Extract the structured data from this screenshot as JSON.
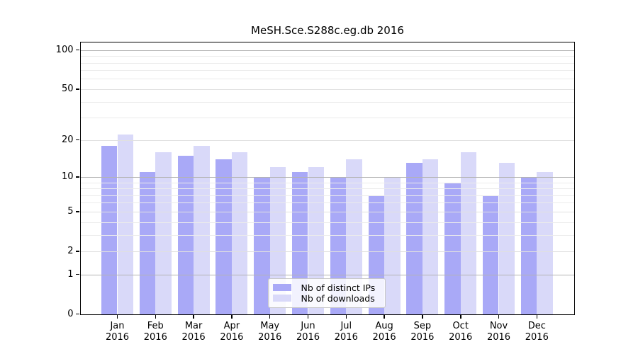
{
  "chart_data": {
    "type": "bar",
    "title": "MeSH.Sce.S288c.eg.db 2016",
    "categories": [
      "Jan",
      "Feb",
      "Mar",
      "Apr",
      "May",
      "Jun",
      "Jul",
      "Aug",
      "Sep",
      "Oct",
      "Nov",
      "Dec"
    ],
    "x_year_label": "2016",
    "series": [
      {
        "name": "Nb of distinct IPs",
        "color": "#a9a9f7",
        "values": [
          18,
          11,
          15,
          14,
          10,
          11,
          10,
          7,
          13,
          9,
          7,
          10
        ]
      },
      {
        "name": "Nb of downloads",
        "color": "#d9d9f9",
        "values": [
          22,
          16,
          18,
          16,
          12,
          12,
          14,
          10,
          14,
          16,
          13,
          11
        ]
      }
    ],
    "yscale": "log1p",
    "ylim": [
      0,
      115
    ],
    "yticks": [
      0,
      1,
      2,
      5,
      10,
      20,
      50,
      100
    ],
    "yticks_minor": [
      3,
      4,
      6,
      7,
      8,
      9,
      30,
      40,
      60,
      70,
      80,
      90
    ],
    "grid": true,
    "legend_position": "bottom-center"
  },
  "colors": {
    "background": "#ffffff",
    "axis": "#000000",
    "text": "#000000",
    "grid_power10": "#b3b3b3",
    "grid_labeled": "#e0e0e0",
    "grid_minor": "#ebebeb",
    "legend_border": "#c8c8c8",
    "legend_background": "rgba(255,255,255,0.85)"
  }
}
